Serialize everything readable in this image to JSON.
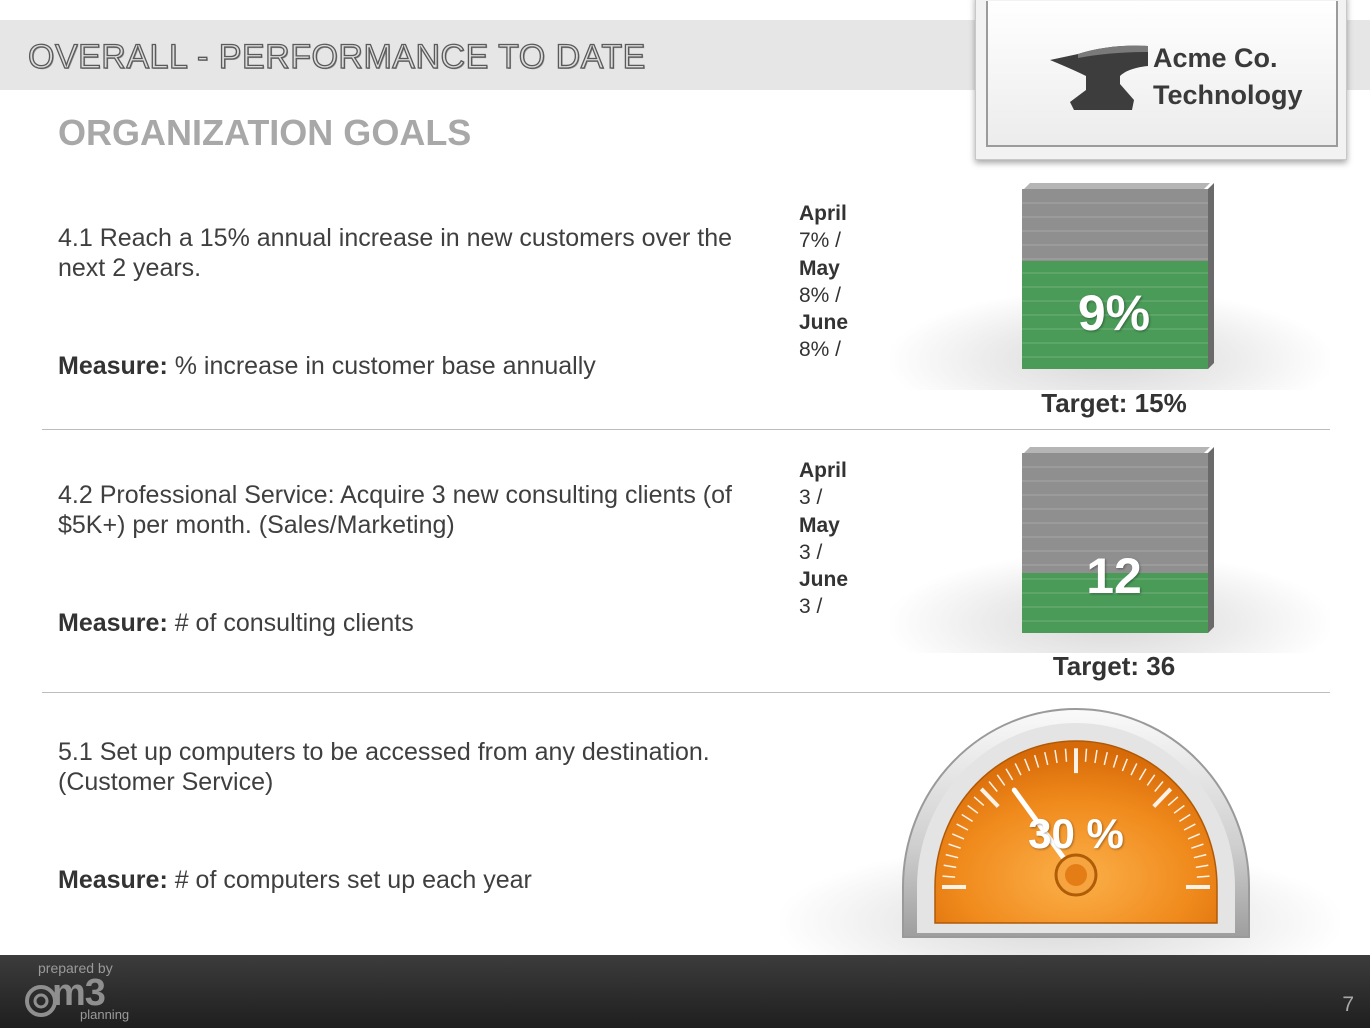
{
  "header": {
    "title": "OVERALL - PERFORMANCE TO DATE",
    "subtitle": "ORGANIZATION GOALS"
  },
  "logo": {
    "line1": "Acme Co.",
    "line2": "Technology",
    "icon": "anvil-icon"
  },
  "goals": [
    {
      "description": "4.1 Reach a 15% annual increase in new customers over the next 2 years.",
      "measure_label": "Measure:",
      "measure_text": " % increase in customer base annually",
      "monthly": [
        {
          "month": "April",
          "value": "7% /"
        },
        {
          "month": "May",
          "value": "8% /"
        },
        {
          "month": "June",
          "value": "8% /"
        }
      ],
      "indicator": "bar",
      "value_label": "9%",
      "fill_fraction": 0.6,
      "target": "Target: 15%"
    },
    {
      "description": "4.2 Professional Service: Acquire 3 new consulting clients (of $5K+) per month. (Sales/Marketing)",
      "measure_label": "Measure:",
      "measure_text": " # of consulting clients",
      "monthly": [
        {
          "month": "April",
          "value": "3 /"
        },
        {
          "month": "May",
          "value": "3 /"
        },
        {
          "month": "June",
          "value": "3 /"
        }
      ],
      "indicator": "bar",
      "value_label": "12",
      "fill_fraction": 0.333,
      "target": "Target: 36"
    },
    {
      "description": "5.1 Set up computers to be accessed from any destination. (Customer Service)",
      "measure_label": "Measure:",
      "measure_text": " # of computers set up each year",
      "indicator": "gauge",
      "value_label": "30 %",
      "gauge_percent": 30
    }
  ],
  "colors": {
    "bar_fill": "#4a9a58",
    "bar_empty": "#8f8f8f",
    "gauge_orange": "#f08a1c",
    "footer": "#2a2a2a"
  },
  "footer": {
    "prepared_by": "prepared by",
    "brand": "m3",
    "brand_sub": "planning",
    "page_number": "7"
  }
}
